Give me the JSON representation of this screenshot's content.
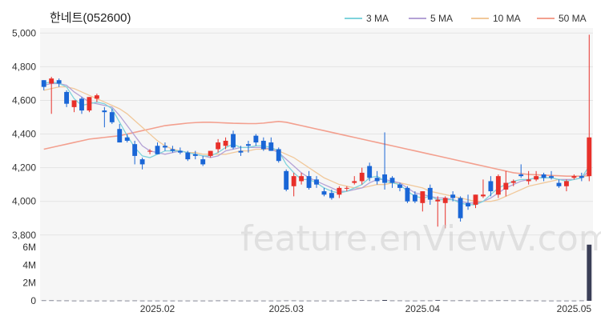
{
  "chart_data": {
    "type": "candlestick",
    "title": "한네트(052600)",
    "watermark": "feature.enViewV.com",
    "colors": {
      "up": "#e8302a",
      "down": "#1a66d6",
      "volume": "#3b3f57",
      "panel": "#f6f6f6"
    },
    "legend": [
      {
        "name": "3 MA",
        "color": "#7fd3dc"
      },
      {
        "name": "5 MA",
        "color": "#b4a2d6"
      },
      {
        "name": "10 MA",
        "color": "#f1c89a"
      },
      {
        "name": "50 MA",
        "color": "#f3a08f"
      }
    ],
    "price_axis": {
      "ticks": [
        3800,
        4000,
        4200,
        4400,
        4600,
        4800,
        5000
      ],
      "labels": [
        "3,800",
        "4,000",
        "4,200",
        "4,400",
        "4,600",
        "4,800",
        "5,000"
      ],
      "range": [
        3780,
        5030
      ]
    },
    "volume_axis": {
      "ticks": [
        0,
        2,
        4,
        6
      ],
      "labels": [
        "0",
        "2M",
        "4M",
        "6M"
      ],
      "range": [
        0,
        7
      ]
    },
    "x_labels": [
      {
        "index": 15,
        "label": "2025.02"
      },
      {
        "index": 32,
        "label": "2025.03"
      },
      {
        "index": 50,
        "label": "2025.04"
      },
      {
        "index": 70,
        "label": "2025.05"
      }
    ],
    "sessions": 73,
    "candles": [
      [
        4720,
        4720,
        4660,
        4680
      ],
      [
        4700,
        4740,
        4520,
        4730
      ],
      [
        4720,
        4730,
        4680,
        4700
      ],
      [
        4650,
        4660,
        4560,
        4580
      ],
      [
        4560,
        4600,
        4530,
        4600
      ],
      [
        4610,
        4620,
        4520,
        4540
      ],
      [
        4540,
        4620,
        4530,
        4620
      ],
      [
        4610,
        4640,
        4590,
        4630
      ],
      [
        4540,
        4560,
        4440,
        4530
      ],
      [
        4530,
        4550,
        4460,
        4470
      ],
      [
        4430,
        4460,
        4350,
        4350
      ],
      [
        4380,
        4400,
        4350,
        4360
      ],
      [
        4340,
        4360,
        4220,
        4270
      ],
      [
        4250,
        4260,
        4190,
        4220
      ],
      [
        4300,
        4310,
        4280,
        4300
      ],
      [
        4330,
        4350,
        4280,
        4280
      ],
      [
        4330,
        4350,
        4300,
        4320
      ],
      [
        4310,
        4330,
        4290,
        4300
      ],
      [
        4300,
        4320,
        4280,
        4290
      ],
      [
        4290,
        4300,
        4240,
        4250
      ],
      [
        4280,
        4300,
        4250,
        4270
      ],
      [
        4250,
        4270,
        4210,
        4220
      ],
      [
        4270,
        4300,
        4260,
        4300
      ],
      [
        4310,
        4370,
        4290,
        4350
      ],
      [
        4330,
        4380,
        4310,
        4360
      ],
      [
        4400,
        4420,
        4310,
        4320
      ],
      [
        4300,
        4330,
        4270,
        4290
      ],
      [
        4340,
        4360,
        4290,
        4330
      ],
      [
        4390,
        4400,
        4330,
        4350
      ],
      [
        4360,
        4380,
        4300,
        4310
      ],
      [
        4350,
        4380,
        4300,
        4300
      ],
      [
        4310,
        4320,
        4230,
        4240
      ],
      [
        4180,
        4190,
        4060,
        4070
      ],
      [
        4090,
        4170,
        4030,
        4150
      ],
      [
        4120,
        4170,
        4100,
        4150
      ],
      [
        4150,
        4180,
        4070,
        4080
      ],
      [
        4130,
        4150,
        4080,
        4100
      ],
      [
        4060,
        4080,
        4030,
        4040
      ],
      [
        4050,
        4070,
        4010,
        4020
      ],
      [
        4040,
        4090,
        4020,
        4080
      ],
      [
        4080,
        4090,
        4060,
        4080
      ],
      [
        4110,
        4150,
        4100,
        4120
      ],
      [
        4120,
        4200,
        4100,
        4170
      ],
      [
        4210,
        4230,
        4120,
        4140
      ],
      [
        4140,
        4180,
        4100,
        4120
      ],
      [
        4160,
        4410,
        4070,
        4110
      ],
      [
        4140,
        4150,
        4080,
        4110
      ],
      [
        4100,
        4110,
        4060,
        4080
      ],
      [
        4080,
        4090,
        3990,
        4000
      ],
      [
        4040,
        4060,
        3990,
        4000
      ],
      [
        3990,
        4060,
        3940,
        4060
      ],
      [
        4080,
        4100,
        3980,
        4010
      ],
      [
        4000,
        4030,
        3850,
        4010
      ],
      [
        3990,
        4030,
        3840,
        4020
      ],
      [
        4040,
        4060,
        4000,
        4020
      ],
      [
        4020,
        4030,
        3880,
        3900
      ],
      [
        3990,
        4040,
        3950,
        3970
      ],
      [
        3980,
        4040,
        3960,
        4040
      ],
      [
        4030,
        4130,
        4020,
        4040
      ],
      [
        4120,
        4150,
        4030,
        4060
      ],
      [
        4040,
        4160,
        4020,
        4150
      ],
      [
        4070,
        4180,
        4030,
        4110
      ],
      [
        4110,
        4130,
        4090,
        4120
      ],
      [
        4160,
        4220,
        4140,
        4150
      ],
      [
        4120,
        4180,
        4100,
        4130
      ],
      [
        4130,
        4180,
        4120,
        4150
      ],
      [
        4160,
        4170,
        4120,
        4140
      ],
      [
        4150,
        4180,
        4130,
        4140
      ],
      [
        4110,
        4130,
        4080,
        4090
      ],
      [
        4090,
        4130,
        4060,
        4120
      ],
      [
        4140,
        4160,
        4130,
        4150
      ],
      [
        4150,
        4170,
        4120,
        4140
      ],
      [
        4150,
        4990,
        4120,
        4380
      ]
    ],
    "ma": {
      "3": [
        4700,
        4710,
        4700,
        4680,
        4610,
        4570,
        4580,
        4590,
        4580,
        4550,
        4470,
        4390,
        4320,
        4270,
        4260,
        4280,
        4300,
        4300,
        4300,
        4290,
        4280,
        4270,
        4270,
        4290,
        4320,
        4340,
        4320,
        4320,
        4330,
        4330,
        4320,
        4300,
        4220,
        4170,
        4130,
        4130,
        4110,
        4080,
        4060,
        4050,
        4060,
        4080,
        4100,
        4140,
        4150,
        4120,
        4110,
        4100,
        4060,
        4030,
        4020,
        4030,
        4010,
        4010,
        4010,
        3990,
        3980,
        3980,
        4000,
        4040,
        4080,
        4100,
        4120,
        4130,
        4130,
        4140,
        4140,
        4140,
        4130,
        4120,
        4130,
        4140,
        4210
      ],
      "5": [
        4690,
        4700,
        4700,
        4690,
        4650,
        4620,
        4590,
        4580,
        4570,
        4560,
        4510,
        4450,
        4390,
        4330,
        4300,
        4290,
        4280,
        4290,
        4300,
        4290,
        4280,
        4270,
        4260,
        4270,
        4300,
        4310,
        4320,
        4320,
        4320,
        4320,
        4310,
        4290,
        4250,
        4210,
        4170,
        4140,
        4120,
        4100,
        4080,
        4060,
        4060,
        4070,
        4080,
        4110,
        4130,
        4130,
        4120,
        4110,
        4080,
        4050,
        4040,
        4030,
        4020,
        4020,
        4010,
        4000,
        3990,
        3990,
        4000,
        4020,
        4050,
        4080,
        4100,
        4120,
        4130,
        4140,
        4140,
        4140,
        4130,
        4130,
        4130,
        4140,
        4180
      ],
      "10": [
        4660,
        4670,
        4680,
        4680,
        4670,
        4650,
        4630,
        4610,
        4590,
        4570,
        4550,
        4520,
        4480,
        4440,
        4400,
        4360,
        4330,
        4310,
        4300,
        4290,
        4290,
        4280,
        4280,
        4280,
        4280,
        4290,
        4300,
        4300,
        4310,
        4310,
        4310,
        4300,
        4280,
        4260,
        4230,
        4200,
        4170,
        4140,
        4120,
        4100,
        4090,
        4080,
        4080,
        4090,
        4100,
        4100,
        4110,
        4110,
        4100,
        4090,
        4080,
        4060,
        4050,
        4040,
        4030,
        4020,
        4010,
        4000,
        4000,
        4000,
        4010,
        4030,
        4050,
        4070,
        4090,
        4100,
        4110,
        4120,
        4130,
        4130,
        4130,
        4140,
        4160
      ],
      "50": [
        4310,
        4320,
        4330,
        4340,
        4350,
        4360,
        4370,
        4375,
        4380,
        4385,
        4390,
        4400,
        4410,
        4420,
        4430,
        4440,
        4450,
        4455,
        4460,
        4465,
        4468,
        4470,
        4470,
        4468,
        4466,
        4464,
        4463,
        4462,
        4462,
        4465,
        4470,
        4475,
        4470,
        4460,
        4450,
        4440,
        4430,
        4420,
        4410,
        4400,
        4390,
        4380,
        4370,
        4360,
        4350,
        4340,
        4330,
        4320,
        4310,
        4300,
        4290,
        4280,
        4270,
        4260,
        4250,
        4240,
        4230,
        4220,
        4210,
        4200,
        4190,
        4180,
        4170,
        4165,
        4160,
        4158,
        4156,
        4154,
        4152,
        4150,
        4150,
        4150,
        4152
      ]
    },
    "volume": [
      0.04,
      0.04,
      0.03,
      0.03,
      0.02,
      0.02,
      0.02,
      0.02,
      0.02,
      0.02,
      0.03,
      0.02,
      0.03,
      0.02,
      0.02,
      0.02,
      0.02,
      0.02,
      0.02,
      0.02,
      0.02,
      0.02,
      0.02,
      0.03,
      0.03,
      0.03,
      0.02,
      0.02,
      0.02,
      0.02,
      0.02,
      0.02,
      0.03,
      0.03,
      0.02,
      0.02,
      0.02,
      0.02,
      0.02,
      0.02,
      0.02,
      0.04,
      0.05,
      0.04,
      0.03,
      0.09,
      0.03,
      0.03,
      0.02,
      0.02,
      0.03,
      0.03,
      0.07,
      0.04,
      0.03,
      0.04,
      0.03,
      0.02,
      0.03,
      0.03,
      0.04,
      0.04,
      0.03,
      0.04,
      0.03,
      0.03,
      0.02,
      0.02,
      0.02,
      0.02,
      0.02,
      0.03,
      6.3
    ]
  }
}
